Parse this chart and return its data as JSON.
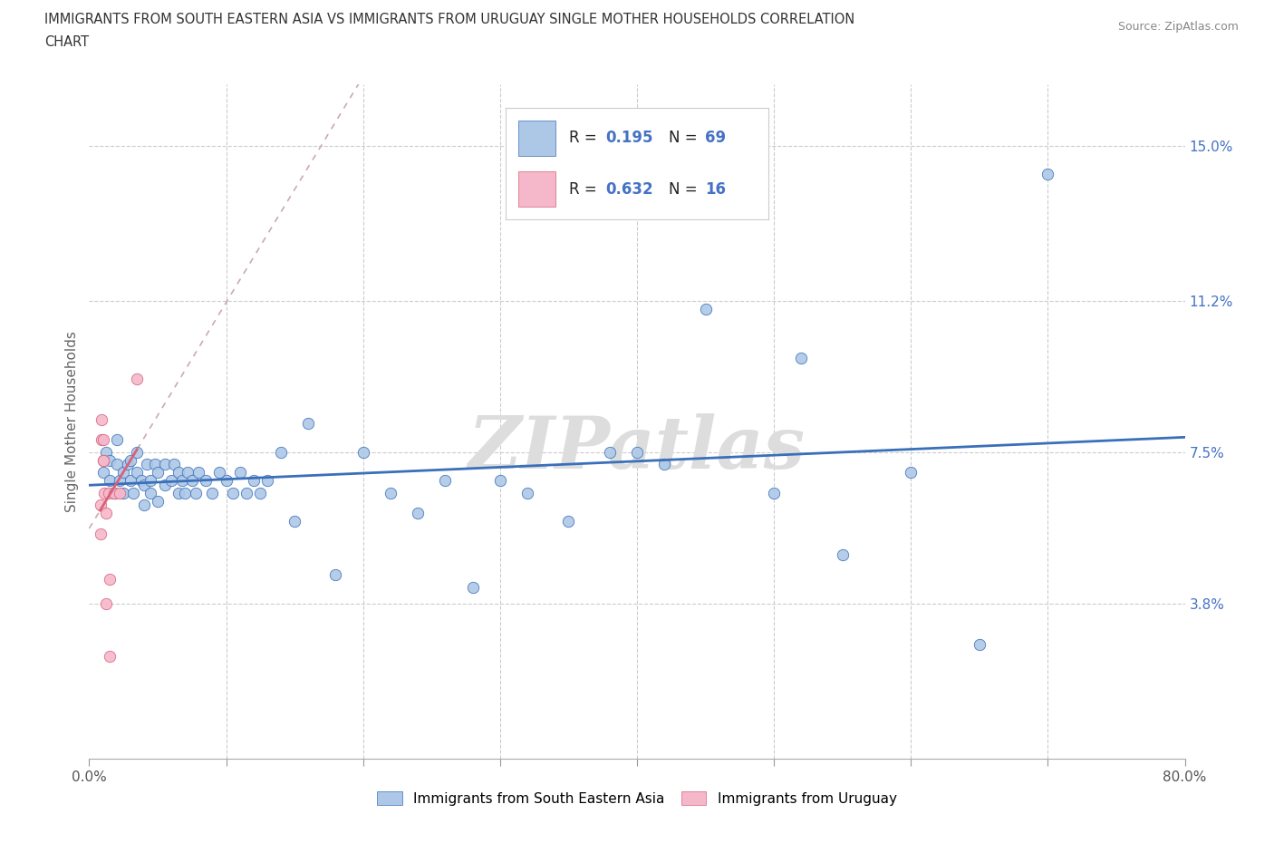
{
  "title_line1": "IMMIGRANTS FROM SOUTH EASTERN ASIA VS IMMIGRANTS FROM URUGUAY SINGLE MOTHER HOUSEHOLDS CORRELATION",
  "title_line2": "CHART",
  "source": "Source: ZipAtlas.com",
  "ylabel": "Single Mother Households",
  "x_min": 0.0,
  "x_max": 0.8,
  "y_min": 0.0,
  "y_max": 0.165,
  "y_tick_positions": [
    0.038,
    0.075,
    0.112,
    0.15
  ],
  "y_tick_labels": [
    "3.8%",
    "7.5%",
    "11.2%",
    "15.0%"
  ],
  "legend1_label": "Immigrants from South Eastern Asia",
  "legend2_label": "Immigrants from Uruguay",
  "r1": 0.195,
  "n1": 69,
  "r2": 0.632,
  "n2": 16,
  "color1": "#adc8e6",
  "color2": "#f5b8ca",
  "line_color1": "#3a6fba",
  "line_color2": "#d9607a",
  "watermark": "ZIPatlas",
  "blue_scatter_x": [
    0.01,
    0.012,
    0.015,
    0.015,
    0.018,
    0.02,
    0.02,
    0.022,
    0.025,
    0.025,
    0.028,
    0.03,
    0.03,
    0.032,
    0.035,
    0.035,
    0.038,
    0.04,
    0.04,
    0.042,
    0.045,
    0.045,
    0.048,
    0.05,
    0.05,
    0.055,
    0.055,
    0.06,
    0.062,
    0.065,
    0.065,
    0.068,
    0.07,
    0.072,
    0.075,
    0.078,
    0.08,
    0.085,
    0.09,
    0.095,
    0.1,
    0.105,
    0.11,
    0.115,
    0.12,
    0.125,
    0.13,
    0.14,
    0.15,
    0.16,
    0.18,
    0.2,
    0.22,
    0.24,
    0.26,
    0.28,
    0.3,
    0.32,
    0.35,
    0.38,
    0.4,
    0.42,
    0.45,
    0.5,
    0.52,
    0.55,
    0.6,
    0.65,
    0.7
  ],
  "blue_scatter_y": [
    0.07,
    0.075,
    0.068,
    0.073,
    0.065,
    0.072,
    0.078,
    0.068,
    0.07,
    0.065,
    0.072,
    0.068,
    0.073,
    0.065,
    0.07,
    0.075,
    0.068,
    0.062,
    0.067,
    0.072,
    0.065,
    0.068,
    0.072,
    0.063,
    0.07,
    0.067,
    0.072,
    0.068,
    0.072,
    0.065,
    0.07,
    0.068,
    0.065,
    0.07,
    0.068,
    0.065,
    0.07,
    0.068,
    0.065,
    0.07,
    0.068,
    0.065,
    0.07,
    0.065,
    0.068,
    0.065,
    0.068,
    0.075,
    0.058,
    0.082,
    0.045,
    0.075,
    0.065,
    0.06,
    0.068,
    0.042,
    0.068,
    0.065,
    0.058,
    0.075,
    0.075,
    0.072,
    0.11,
    0.065,
    0.098,
    0.05,
    0.07,
    0.028,
    0.143
  ],
  "pink_scatter_x": [
    0.008,
    0.008,
    0.009,
    0.009,
    0.01,
    0.01,
    0.01,
    0.011,
    0.012,
    0.012,
    0.014,
    0.015,
    0.015,
    0.018,
    0.022,
    0.035
  ],
  "pink_scatter_y": [
    0.055,
    0.062,
    0.078,
    0.083,
    0.073,
    0.078,
    0.073,
    0.065,
    0.038,
    0.06,
    0.065,
    0.044,
    0.025,
    0.065,
    0.065,
    0.093
  ],
  "minor_x_ticks": [
    0.1,
    0.2,
    0.3,
    0.4,
    0.5,
    0.6,
    0.7
  ]
}
